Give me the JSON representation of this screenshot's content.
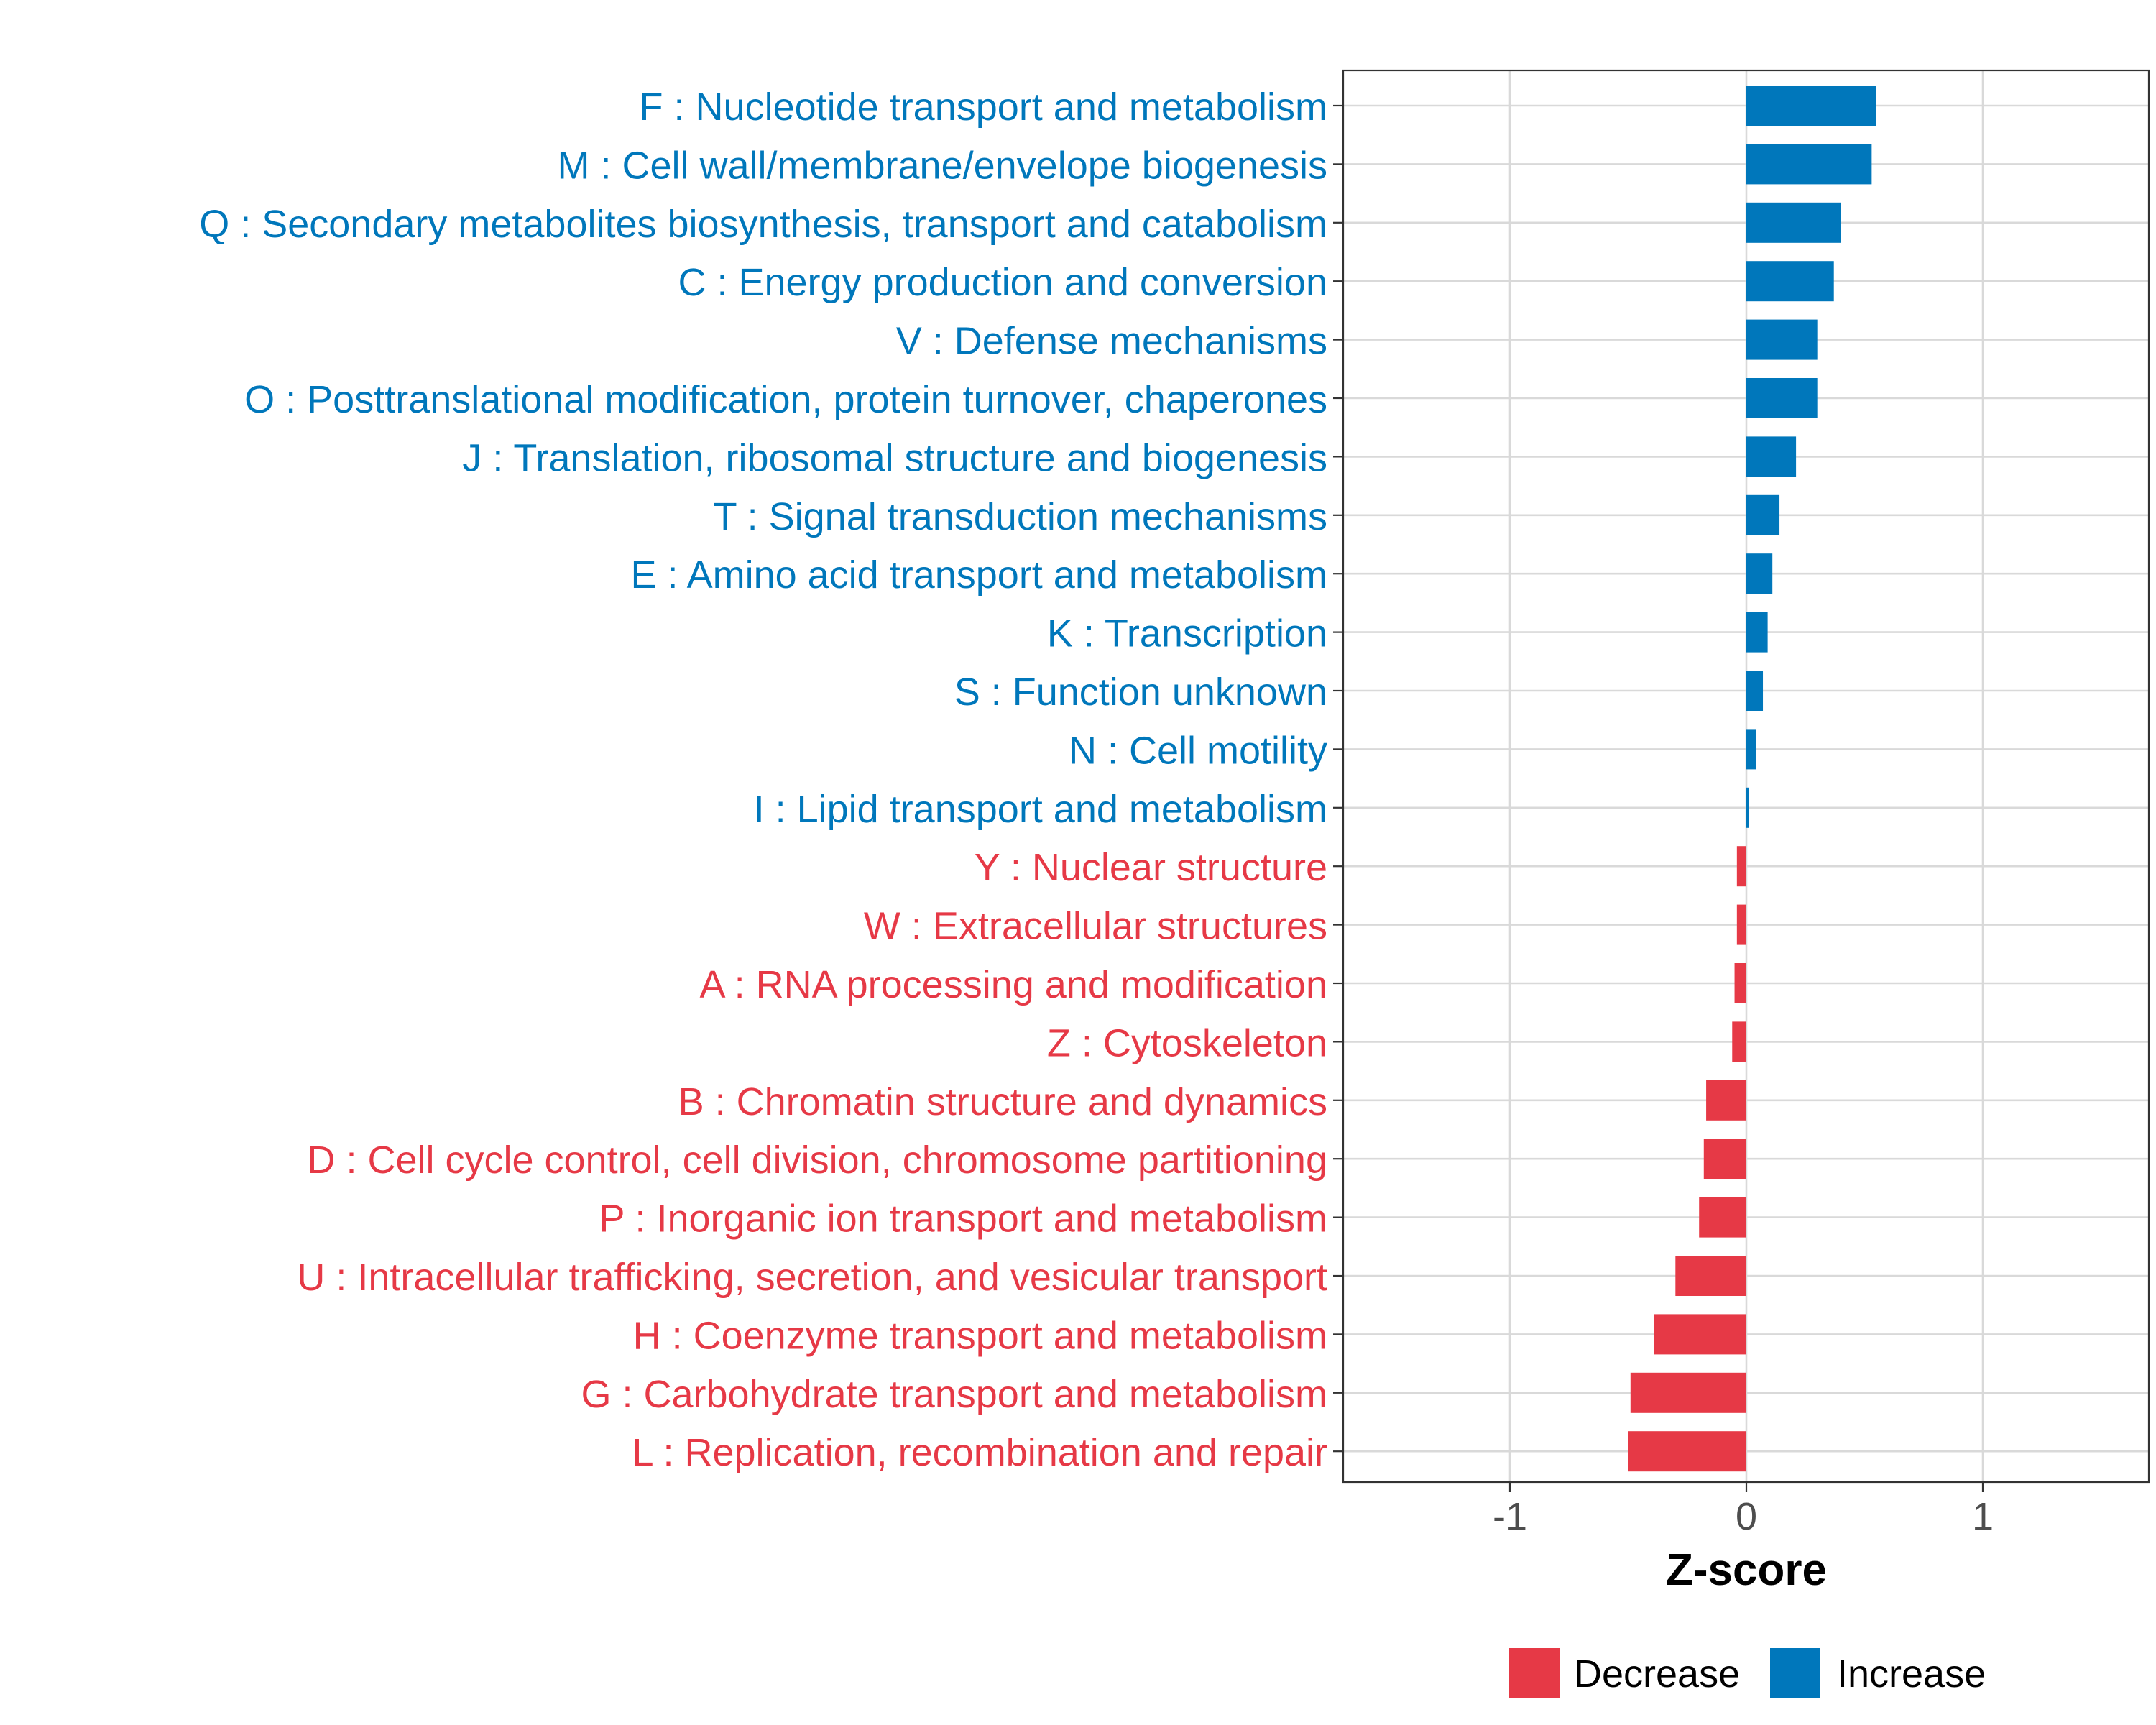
{
  "chart_data": {
    "type": "bar",
    "orientation": "horizontal",
    "title": "",
    "xlabel": "Z-score",
    "ylabel": "",
    "xlim": [
      -1.7,
      1.7
    ],
    "x_ticks": [
      -1,
      0,
      1
    ],
    "x_tick_labels": [
      "-1",
      "0",
      "1"
    ],
    "grid": true,
    "legend_position": "bottom",
    "colors": {
      "Increase": "#0077BB",
      "Decrease": "#E63946",
      "grid": "#D9D9D9",
      "axis_text": "#4D4D4D"
    },
    "legend": [
      {
        "label": "Decrease",
        "color": "#E63946"
      },
      {
        "label": "Increase",
        "color": "#0077BB"
      }
    ],
    "categories": [
      {
        "label": "F : Nucleotide transport and metabolism",
        "value": 0.55,
        "direction": "Increase"
      },
      {
        "label": "M : Cell wall/membrane/envelope biogenesis",
        "value": 0.53,
        "direction": "Increase"
      },
      {
        "label": "Q : Secondary metabolites biosynthesis, transport and catabolism",
        "value": 0.4,
        "direction": "Increase"
      },
      {
        "label": "C : Energy production and conversion",
        "value": 0.37,
        "direction": "Increase"
      },
      {
        "label": "V : Defense mechanisms",
        "value": 0.3,
        "direction": "Increase"
      },
      {
        "label": "O : Posttranslational modification, protein turnover, chaperones",
        "value": 0.3,
        "direction": "Increase"
      },
      {
        "label": "J : Translation, ribosomal structure and biogenesis",
        "value": 0.21,
        "direction": "Increase"
      },
      {
        "label": "T : Signal transduction mechanisms",
        "value": 0.14,
        "direction": "Increase"
      },
      {
        "label": "E : Amino acid transport and metabolism",
        "value": 0.11,
        "direction": "Increase"
      },
      {
        "label": "K : Transcription",
        "value": 0.09,
        "direction": "Increase"
      },
      {
        "label": "S : Function unknown",
        "value": 0.07,
        "direction": "Increase"
      },
      {
        "label": "N : Cell motility",
        "value": 0.04,
        "direction": "Increase"
      },
      {
        "label": "I : Lipid transport and metabolism",
        "value": 0.01,
        "direction": "Increase"
      },
      {
        "label": "Y : Nuclear structure",
        "value": -0.04,
        "direction": "Decrease"
      },
      {
        "label": "W : Extracellular structures",
        "value": -0.04,
        "direction": "Decrease"
      },
      {
        "label": "A : RNA processing and modification",
        "value": -0.05,
        "direction": "Decrease"
      },
      {
        "label": "Z : Cytoskeleton",
        "value": -0.06,
        "direction": "Decrease"
      },
      {
        "label": "B : Chromatin structure and dynamics",
        "value": -0.17,
        "direction": "Decrease"
      },
      {
        "label": "D : Cell cycle control, cell division, chromosome partitioning",
        "value": -0.18,
        "direction": "Decrease"
      },
      {
        "label": "P : Inorganic ion transport and metabolism",
        "value": -0.2,
        "direction": "Decrease"
      },
      {
        "label": "U : Intracellular trafficking, secretion, and vesicular transport",
        "value": -0.3,
        "direction": "Decrease"
      },
      {
        "label": "H : Coenzyme transport and metabolism",
        "value": -0.39,
        "direction": "Decrease"
      },
      {
        "label": "G : Carbohydrate transport and metabolism",
        "value": -0.49,
        "direction": "Decrease"
      },
      {
        "label": "L : Replication, recombination and repair",
        "value": -0.5,
        "direction": "Decrease"
      }
    ]
  }
}
